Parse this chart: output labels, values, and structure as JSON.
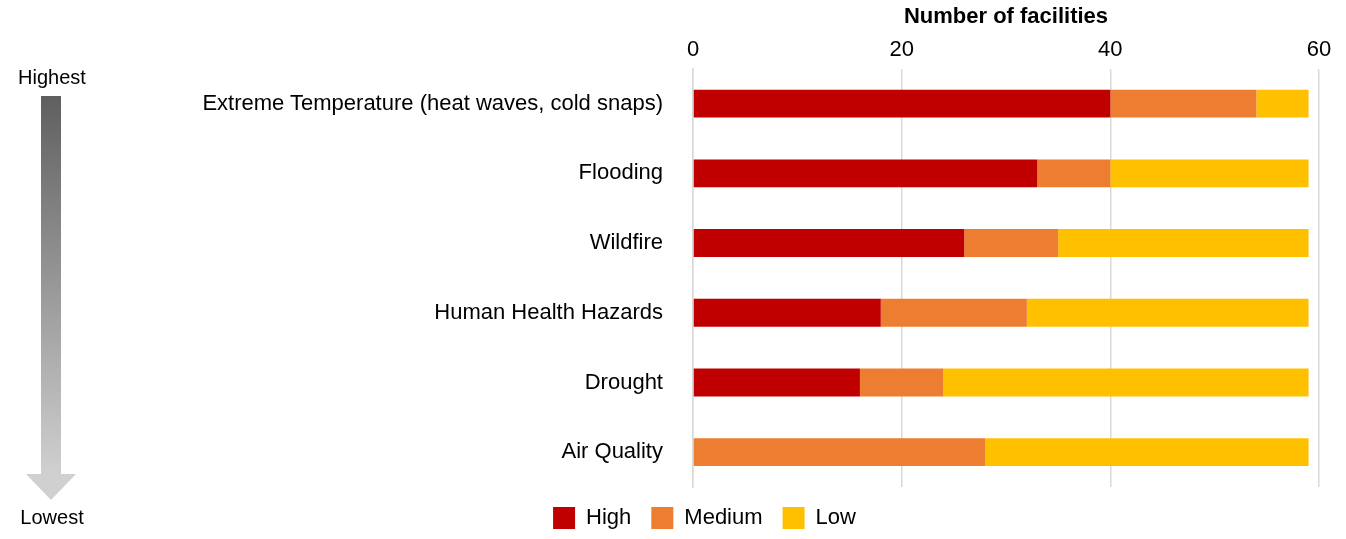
{
  "chart_data": {
    "type": "bar",
    "orientation": "horizontal",
    "stacked": true,
    "xlabel": "Number of facilities",
    "categories": [
      "Extreme Temperature (heat waves, cold snaps)",
      "Flooding",
      "Wildfire",
      "Human Health Hazards",
      "Drought",
      "Air Quality"
    ],
    "series": [
      {
        "name": "High",
        "color": "#c00000",
        "values": [
          40,
          33,
          26,
          18,
          16,
          0
        ]
      },
      {
        "name": "Medium",
        "color": "#ed7d31",
        "values": [
          14,
          7,
          9,
          14,
          8,
          28
        ]
      },
      {
        "name": "Low",
        "color": "#ffc000",
        "values": [
          5,
          19,
          24,
          27,
          35,
          31
        ]
      }
    ],
    "xlim": [
      0,
      60
    ],
    "xticks": [
      0,
      20,
      40,
      60
    ],
    "grid": "x",
    "legend": "bottom",
    "annotations": [
      "Highest",
      "Lowest"
    ]
  }
}
